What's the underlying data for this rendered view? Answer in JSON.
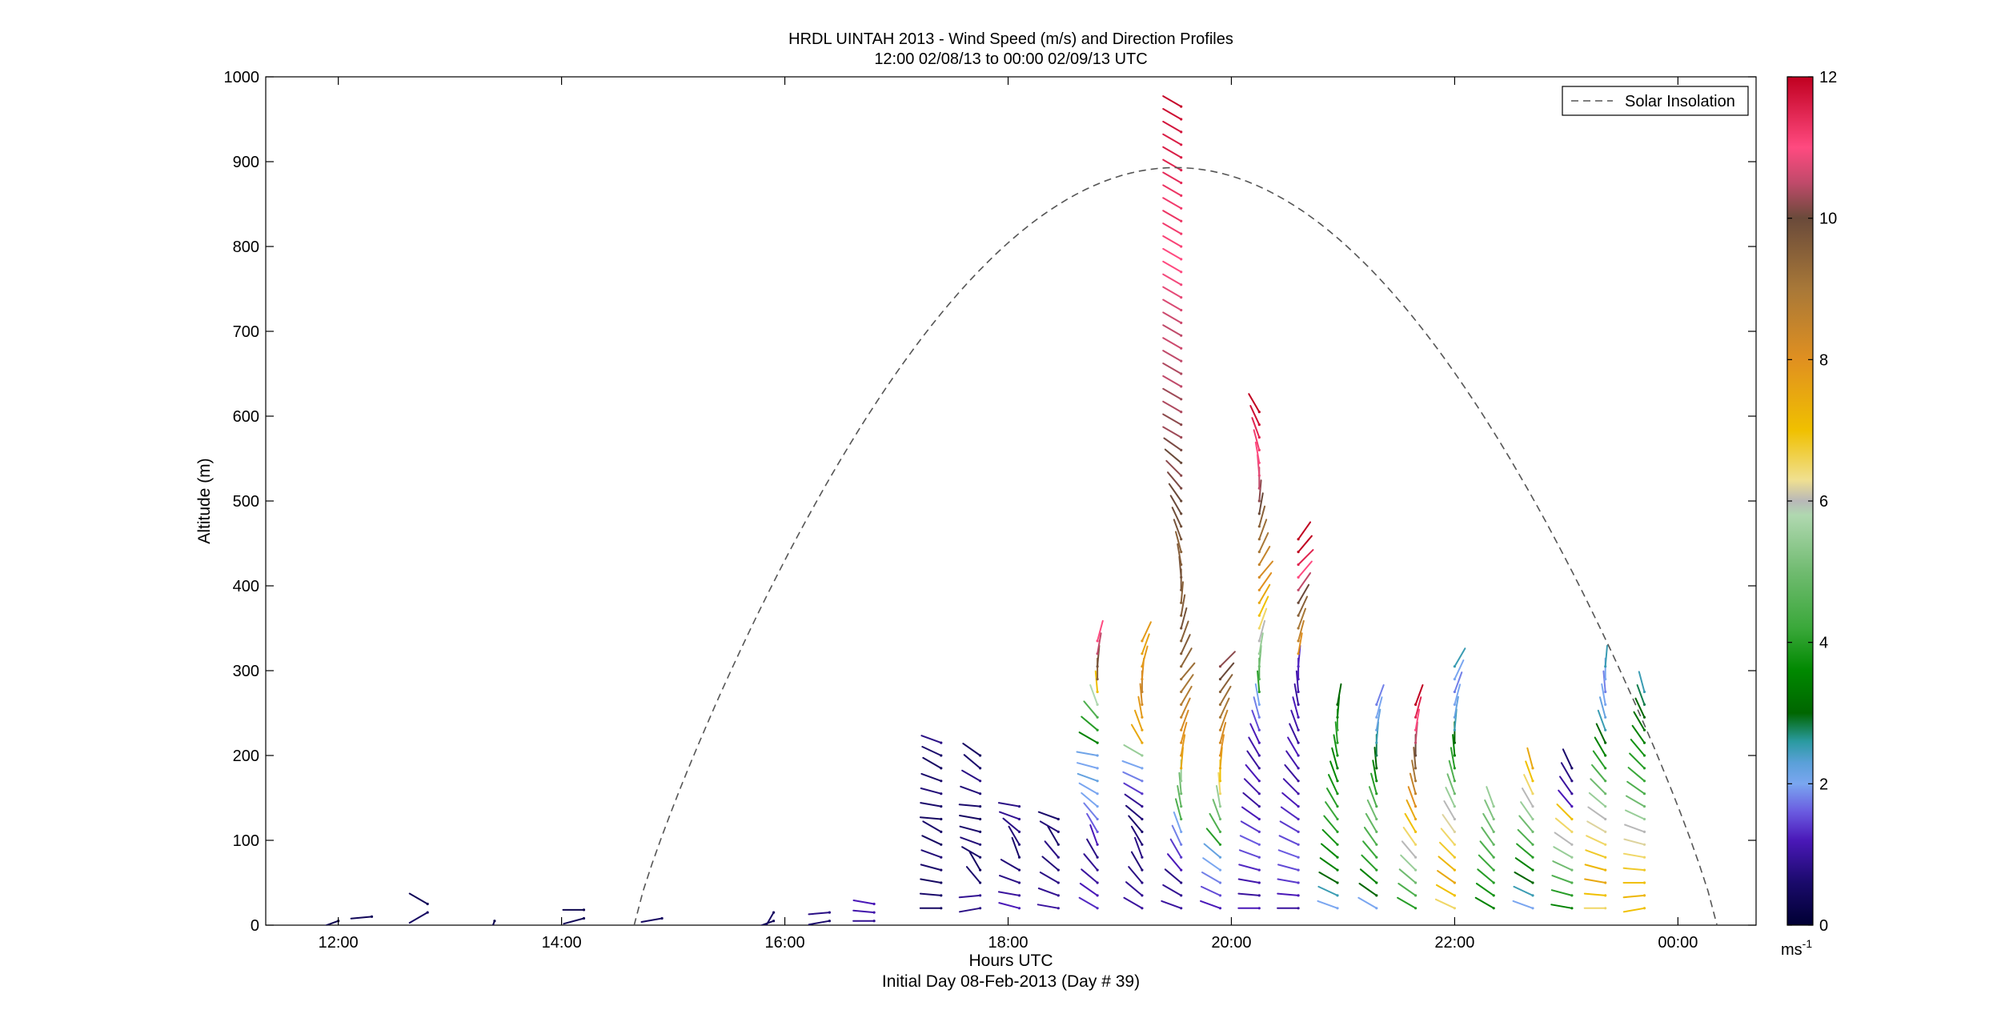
{
  "title": "HRDL UINTAH 2013 - Wind Speed (m/s) and Direction Profiles",
  "subtitle": "12:00 02/08/13 to 00:00 02/09/13  UTC",
  "chart_data": {
    "type": "wind-barb-profile",
    "xlabel": "Hours UTC",
    "xlabel2": "Initial Day 08-Feb-2013 (Day # 39)",
    "ylabel": "Altitude (m)",
    "xlim": [
      11.35,
      24.7
    ],
    "ylim": [
      0,
      1000
    ],
    "x_ticks": [
      {
        "value": 12,
        "label": "12:00"
      },
      {
        "value": 14,
        "label": "14:00"
      },
      {
        "value": 16,
        "label": "16:00"
      },
      {
        "value": 18,
        "label": "18:00"
      },
      {
        "value": 20,
        "label": "20:00"
      },
      {
        "value": 22,
        "label": "22:00"
      },
      {
        "value": 24,
        "label": "00:00"
      }
    ],
    "y_ticks": [
      0,
      100,
      200,
      300,
      400,
      500,
      600,
      700,
      800,
      900,
      1000
    ],
    "legend": {
      "label": "Solar Insolation",
      "position": "top-right",
      "style": "dashed",
      "color": "#555555"
    },
    "solar_insolation": {
      "start_hour": 14.65,
      "peak_hour": 19.5,
      "end_hour": 24.35,
      "peak_altitude": 893
    },
    "colorbar": {
      "label": "ms",
      "label_exp": "-1",
      "range": [
        0,
        12
      ],
      "ticks": [
        0,
        2,
        4,
        6,
        8,
        10,
        12
      ],
      "stops": [
        {
          "v": 0,
          "c": "#000033"
        },
        {
          "v": 0.6,
          "c": "#1a0a6b"
        },
        {
          "v": 1.2,
          "c": "#4a18b8"
        },
        {
          "v": 1.6,
          "c": "#6a5ae0"
        },
        {
          "v": 2.0,
          "c": "#7aa6f0"
        },
        {
          "v": 2.3,
          "c": "#5aa0d8"
        },
        {
          "v": 2.6,
          "c": "#2a9aa0"
        },
        {
          "v": 3.0,
          "c": "#006600"
        },
        {
          "v": 3.6,
          "c": "#008800"
        },
        {
          "v": 4.2,
          "c": "#3aa83a"
        },
        {
          "v": 5.0,
          "c": "#70bb70"
        },
        {
          "v": 5.8,
          "c": "#b0d8b0"
        },
        {
          "v": 6.0,
          "c": "#b8b8b8"
        },
        {
          "v": 6.3,
          "c": "#f0e090"
        },
        {
          "v": 7.0,
          "c": "#f0c000"
        },
        {
          "v": 8.0,
          "c": "#e09020"
        },
        {
          "v": 9.0,
          "c": "#a87838"
        },
        {
          "v": 10.0,
          "c": "#6a4a3a"
        },
        {
          "v": 10.5,
          "c": "#c04a6a"
        },
        {
          "v": 11.0,
          "c": "#ff4a80"
        },
        {
          "v": 12.0,
          "c": "#c00020"
        }
      ]
    },
    "profiles": [
      {
        "t": 12.0,
        "base": 5,
        "step": 10,
        "speed": [
          0.3
        ],
        "dir": [
          250
        ]
      },
      {
        "t": 12.3,
        "base": 10,
        "step": 10,
        "speed": [
          0.4
        ],
        "dir": [
          265
        ]
      },
      {
        "t": 12.8,
        "base": 15,
        "step": 10,
        "speed": [
          0.5,
          0.4
        ],
        "dir": [
          240,
          300
        ]
      },
      {
        "t": 13.4,
        "base": 5,
        "step": 10,
        "speed": [
          0.3
        ],
        "dir": [
          200
        ]
      },
      {
        "t": 14.2,
        "base": 8,
        "step": 10,
        "speed": [
          0.4,
          0.3
        ],
        "dir": [
          255,
          270
        ]
      },
      {
        "t": 14.9,
        "base": 8,
        "step": 10,
        "speed": [
          0.5
        ],
        "dir": [
          260
        ]
      },
      {
        "t": 15.9,
        "base": 5,
        "step": 10,
        "speed": [
          0.4,
          0.5
        ],
        "dir": [
          250,
          210
        ]
      },
      {
        "t": 16.4,
        "base": 5,
        "step": 10,
        "speed": [
          0.6,
          0.8
        ],
        "dir": [
          260,
          265
        ]
      },
      {
        "t": 16.8,
        "base": 5,
        "step": 10,
        "speed": [
          0.9,
          1.1,
          1.2
        ],
        "dir": [
          270,
          275,
          280
        ]
      },
      {
        "t": 17.4,
        "base": 20,
        "step": 15,
        "speed": [
          0.5,
          0.6,
          0.5,
          0.6,
          0.7,
          0.5,
          0.6,
          0.5,
          0.6,
          0.7,
          0.6,
          0.5,
          0.6,
          0.8
        ],
        "dir": [
          270,
          275,
          280,
          285,
          290,
          295,
          300,
          275,
          280,
          285,
          290,
          300,
          295,
          290
        ]
      },
      {
        "t": 17.75,
        "base": 20,
        "step": 15,
        "speed": [
          0.8,
          0.9,
          0.6,
          0.5,
          0.6,
          0.7,
          0.6,
          0.5,
          0.6,
          0.7,
          0.8,
          0.6,
          0.5
        ],
        "dir": [
          260,
          265,
          320,
          330,
          300,
          290,
          285,
          280,
          275,
          290,
          300,
          310,
          305
        ]
      },
      {
        "t": 18.1,
        "base": 20,
        "step": 15,
        "speed": [
          1.2,
          1.0,
          0.8,
          0.7,
          0.6,
          0.7,
          0.8,
          0.9,
          0.8
        ],
        "dir": [
          285,
          280,
          290,
          300,
          340,
          330,
          310,
          290,
          280
        ]
      },
      {
        "t": 18.45,
        "base": 20,
        "step": 15,
        "speed": [
          1.0,
          0.9,
          0.8,
          0.7,
          0.8,
          0.6,
          0.7,
          0.6
        ],
        "dir": [
          280,
          290,
          300,
          310,
          320,
          330,
          300,
          290
        ]
      },
      {
        "t": 18.8,
        "base": 20,
        "step": 15,
        "speed": [
          1.3,
          1.2,
          1.0,
          0.9,
          0.8,
          1.2,
          1.6,
          1.8,
          2.0,
          2.0,
          2.2,
          2.0,
          2.1,
          3.5,
          4.0,
          4.5,
          5.8,
          7.0,
          9.5,
          9.8,
          10.5,
          11.0
        ],
        "dir": [
          300,
          305,
          310,
          320,
          330,
          340,
          330,
          320,
          310,
          300,
          290,
          285,
          280,
          300,
          310,
          320,
          340,
          355,
          0,
          5,
          10,
          15
        ]
      },
      {
        "t": 19.2,
        "base": 20,
        "step": 15,
        "speed": [
          1.0,
          0.9,
          0.8,
          0.7,
          0.8,
          0.7,
          0.6,
          0.7,
          0.9,
          1.4,
          1.8,
          2.0,
          5.5,
          7.5,
          7.6,
          7.8,
          8.2,
          8.5,
          8.0,
          7.8,
          7.6,
          7.8
        ],
        "dir": [
          300,
          310,
          320,
          330,
          340,
          330,
          320,
          310,
          305,
          300,
          295,
          290,
          300,
          330,
          340,
          350,
          355,
          0,
          5,
          15,
          20,
          25
        ]
      },
      {
        "t": 19.55,
        "base": 20,
        "step": 15,
        "speed": [
          1.0,
          0.9,
          0.8,
          1.2,
          1.4,
          1.8,
          2.0,
          4.5,
          4.8,
          5.0,
          5.5,
          7.5,
          7.8,
          8.0,
          8.2,
          8.5,
          8.8,
          9.0,
          9.2,
          9.4,
          9.6,
          9.5,
          9.8,
          9.6,
          9.5,
          9.7,
          9.8,
          9.6,
          9.5,
          9.8,
          9.9,
          10.0,
          10.0,
          10.1,
          10.2,
          10.0,
          10.1,
          10.3,
          10.2,
          10.4,
          10.3,
          10.5,
          10.4,
          10.5,
          10.6,
          10.5,
          10.6,
          10.7,
          10.8,
          10.9,
          11.0,
          11.0,
          11.1,
          11.2,
          11.3,
          11.2,
          11.3,
          11.4,
          11.5,
          11.6,
          11.6,
          11.7,
          11.8,
          11.9
        ],
        "dir": [
          290,
          300,
          310,
          320,
          330,
          335,
          340,
          345,
          350,
          355,
          0,
          5,
          10,
          15,
          20,
          25,
          30,
          35,
          40,
          30,
          25,
          20,
          15,
          10,
          5,
          0,
          355,
          350,
          345,
          340,
          335,
          330,
          325,
          320,
          315,
          310,
          305,
          300,
          300,
          300,
          300,
          300,
          300,
          300,
          300,
          300,
          300,
          300,
          300,
          300,
          300,
          300,
          300,
          300,
          300,
          300,
          300,
          300,
          300,
          300,
          300,
          300,
          300,
          300
        ]
      },
      {
        "t": 19.9,
        "base": 20,
        "step": 15,
        "speed": [
          1.2,
          1.5,
          1.8,
          2.0,
          2.2,
          4.0,
          4.5,
          5.0,
          5.5,
          6.5,
          7.0,
          7.5,
          8.0,
          8.2,
          8.5,
          9.0,
          9.2,
          9.5,
          10.0,
          10.2
        ],
        "dir": [
          290,
          295,
          300,
          305,
          310,
          320,
          330,
          340,
          350,
          355,
          0,
          5,
          10,
          15,
          20,
          25,
          30,
          35,
          40,
          45
        ]
      },
      {
        "t": 20.25,
        "base": 20,
        "step": 15,
        "speed": [
          1.2,
          1.0,
          1.1,
          1.3,
          1.5,
          1.6,
          1.4,
          1.2,
          1.0,
          1.1,
          1.2,
          1.0,
          1.1,
          1.2,
          1.5,
          1.8,
          2.0,
          4.0,
          4.5,
          5.0,
          5.5,
          6.0,
          6.5,
          7.0,
          7.5,
          8.0,
          8.2,
          8.5,
          9.0,
          9.2,
          9.5,
          10.0,
          10.2,
          10.5,
          10.8,
          11.0,
          11.2,
          11.5,
          11.8,
          12.0
        ],
        "dir": [
          270,
          275,
          280,
          285,
          290,
          295,
          300,
          305,
          310,
          315,
          320,
          325,
          330,
          335,
          340,
          345,
          350,
          355,
          0,
          5,
          10,
          15,
          20,
          25,
          30,
          35,
          40,
          30,
          25,
          20,
          15,
          10,
          5,
          0,
          355,
          350,
          345,
          340,
          335,
          330
        ]
      },
      {
        "t": 20.6,
        "base": 20,
        "step": 15,
        "speed": [
          1.0,
          1.2,
          1.4,
          1.5,
          1.6,
          1.5,
          1.4,
          1.3,
          1.2,
          1.1,
          1.0,
          1.1,
          1.2,
          1.0,
          1.1,
          1.2,
          1.0,
          1.1,
          1.2,
          1.3,
          8.0,
          8.5,
          9.0,
          9.5,
          10.0,
          10.5,
          11.0,
          11.5,
          12.0,
          12.0
        ],
        "dir": [
          270,
          275,
          280,
          285,
          290,
          295,
          300,
          305,
          310,
          315,
          320,
          325,
          330,
          335,
          340,
          345,
          350,
          355,
          0,
          5,
          10,
          15,
          20,
          25,
          30,
          35,
          40,
          45,
          40,
          35
        ]
      },
      {
        "t": 20.95,
        "base": 20,
        "step": 15,
        "speed": [
          2.0,
          2.5,
          3.0,
          3.5,
          3.6,
          3.8,
          4.0,
          4.2,
          4.0,
          3.8,
          3.6,
          3.5,
          3.8,
          4.0,
          4.2,
          3.5,
          3.0
        ],
        "dir": [
          290,
          295,
          300,
          305,
          310,
          315,
          320,
          325,
          330,
          335,
          340,
          345,
          350,
          355,
          0,
          5,
          10
        ]
      },
      {
        "t": 21.3,
        "base": 20,
        "step": 15,
        "speed": [
          2.0,
          3.0,
          3.5,
          4.0,
          4.2,
          4.5,
          4.8,
          5.0,
          4.5,
          4.0,
          3.5,
          3.0,
          2.8,
          2.5,
          2.2,
          2.0,
          1.8
        ],
        "dir": [
          300,
          305,
          310,
          315,
          320,
          325,
          330,
          335,
          340,
          345,
          350,
          355,
          0,
          5,
          10,
          15,
          20
        ]
      },
      {
        "t": 21.65,
        "base": 20,
        "step": 15,
        "speed": [
          4.0,
          4.5,
          5.0,
          5.5,
          6.0,
          6.5,
          7.0,
          7.5,
          8.0,
          8.5,
          9.0,
          9.5,
          10.0,
          10.5,
          11.0,
          11.5,
          12.0
        ],
        "dir": [
          300,
          305,
          310,
          315,
          320,
          325,
          330,
          335,
          340,
          345,
          350,
          355,
          0,
          5,
          10,
          15,
          20
        ]
      },
      {
        "t": 22.0,
        "base": 20,
        "step": 15,
        "speed": [
          6.5,
          7.0,
          7.5,
          7.2,
          6.8,
          6.5,
          6.2,
          6.0,
          5.5,
          5.0,
          4.5,
          4.0,
          3.5,
          3.0,
          2.5,
          2.2,
          2.0,
          1.8,
          2.0,
          2.5
        ],
        "dir": [
          295,
          300,
          305,
          310,
          315,
          320,
          325,
          330,
          335,
          340,
          345,
          350,
          355,
          0,
          5,
          10,
          15,
          20,
          25,
          30
        ]
      },
      {
        "t": 22.35,
        "base": 20,
        "step": 15,
        "speed": [
          3.5,
          3.8,
          4.0,
          4.2,
          4.5,
          4.8,
          5.0,
          5.2,
          5.5
        ],
        "dir": [
          300,
          305,
          310,
          315,
          320,
          325,
          330,
          335,
          340
        ]
      },
      {
        "t": 22.7,
        "base": 20,
        "step": 15,
        "speed": [
          2.0,
          2.5,
          3.0,
          3.5,
          4.0,
          4.5,
          5.0,
          5.5,
          6.0,
          6.5,
          7.0,
          7.5
        ],
        "dir": [
          290,
          295,
          300,
          305,
          310,
          315,
          320,
          325,
          330,
          335,
          340,
          345
        ]
      },
      {
        "t": 23.05,
        "base": 20,
        "step": 15,
        "speed": [
          3.5,
          4.0,
          4.5,
          5.0,
          5.5,
          6.0,
          6.5,
          7.0,
          1.2,
          1.0,
          0.8,
          0.6
        ],
        "dir": [
          280,
          285,
          290,
          295,
          300,
          305,
          310,
          315,
          320,
          325,
          330,
          335
        ]
      },
      {
        "t": 23.35,
        "base": 20,
        "step": 15,
        "speed": [
          6.5,
          7.0,
          7.5,
          7.2,
          6.8,
          6.5,
          6.2,
          6.0,
          5.5,
          5.0,
          4.5,
          4.0,
          3.5,
          3.0,
          2.5,
          2.2,
          2.0,
          1.8,
          2.0,
          2.5
        ],
        "dir": [
          270,
          275,
          280,
          285,
          290,
          295,
          300,
          305,
          310,
          315,
          320,
          325,
          330,
          335,
          340,
          345,
          350,
          355,
          0,
          5
        ]
      },
      {
        "t": 23.7,
        "base": 20,
        "step": 15,
        "speed": [
          7.0,
          7.2,
          7.0,
          6.8,
          6.5,
          6.2,
          6.0,
          5.5,
          5.0,
          4.5,
          4.2,
          4.0,
          3.8,
          3.5,
          3.2,
          3.0,
          2.8,
          2.5
        ],
        "dir": [
          260,
          265,
          270,
          275,
          280,
          285,
          290,
          295,
          300,
          305,
          310,
          315,
          320,
          325,
          330,
          335,
          340,
          345
        ]
      }
    ]
  }
}
